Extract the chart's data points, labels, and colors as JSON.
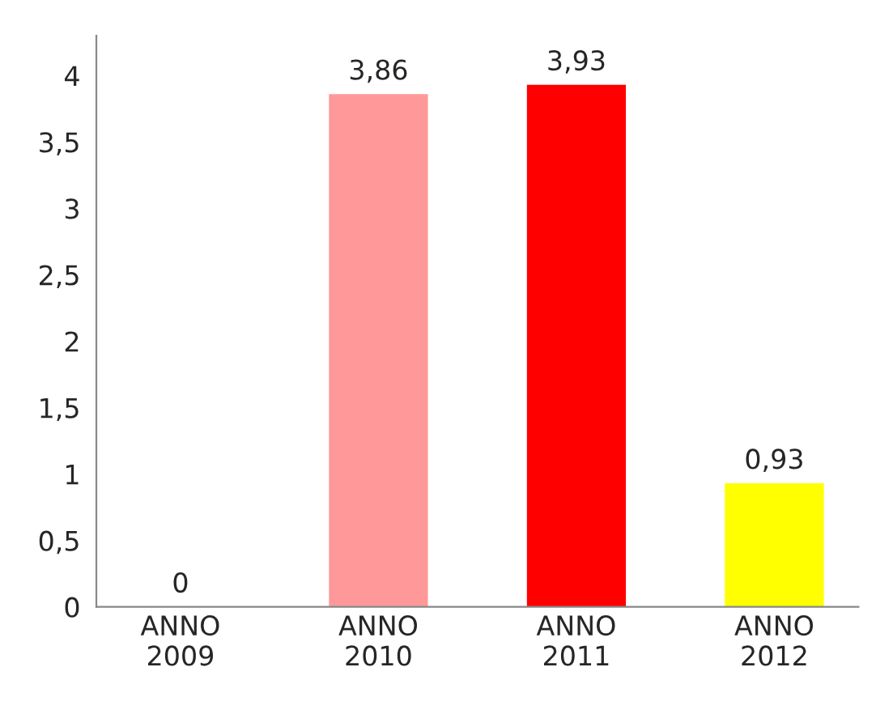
{
  "chart_data": {
    "type": "bar",
    "categories": [
      "ANNO\n2009",
      "ANNO\n2010",
      "ANNO\n2011",
      "ANNO\n2012"
    ],
    "values": [
      0,
      3.86,
      3.93,
      0.93
    ],
    "colors": [
      "#0a8abf",
      "#ff9999",
      "#ff0000",
      "#ffff00"
    ],
    "value_labels": [
      "0",
      "3,86",
      "3,93",
      "0,93"
    ],
    "ylim": [
      0,
      4.3
    ],
    "yticks": [
      0,
      {
        "value": 0.5,
        "label": "0,5"
      },
      1,
      {
        "value": 1.5,
        "label": "1,5"
      },
      2,
      {
        "value": 2.5,
        "label": "2,5"
      },
      3,
      {
        "value": 3.5,
        "label": "3,5"
      },
      4
    ],
    "grid": false
  }
}
